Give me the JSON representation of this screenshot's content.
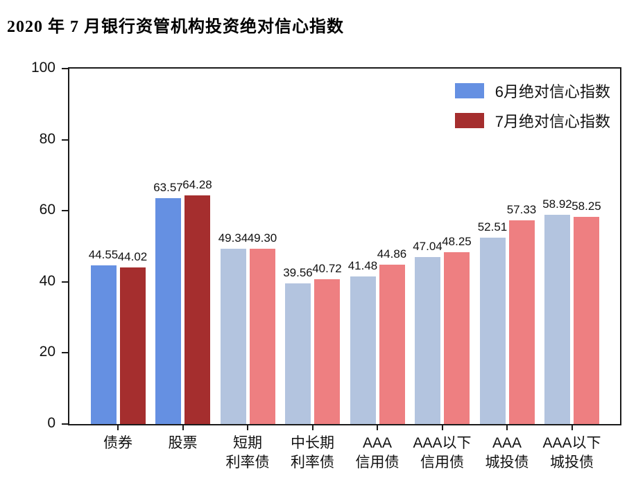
{
  "title": "2020 年 7 月银行资管机构投资绝对信心指数",
  "legend": {
    "items": [
      {
        "label": "6月绝对信心指数",
        "color": "#6590e2"
      },
      {
        "label": "7月绝对信心指数",
        "color": "#a52e2e"
      }
    ]
  },
  "chart_data": {
    "type": "bar",
    "title": "2020 年 7 月银行资管机构投资绝对信心指数",
    "categories": [
      "债券",
      "股票",
      "短期\n利率债",
      "中长期\n利率债",
      "AAA\n信用债",
      "AAA以下\n信用债",
      "AAA\n城投债",
      "AAA以下\n城投债"
    ],
    "series": [
      {
        "name": "6月绝对信心指数",
        "values": [
          44.55,
          63.57,
          49.34,
          39.56,
          41.48,
          47.04,
          52.51,
          58.92
        ],
        "value_labels": [
          "44.55",
          "63.57",
          "49.34",
          "39.56",
          "41.48",
          "47.04",
          "52.51",
          "58.92"
        ],
        "bar_colors": [
          "#6590e2",
          "#6590e2",
          "#b3c4df",
          "#b3c4df",
          "#b3c4df",
          "#b3c4df",
          "#b3c4df",
          "#b3c4df"
        ]
      },
      {
        "name": "7月绝对信心指数",
        "values": [
          44.02,
          64.28,
          49.3,
          40.72,
          44.86,
          48.25,
          57.33,
          58.25
        ],
        "value_labels": [
          "44.02",
          "64.28",
          "49.30",
          "40.72",
          "44.86",
          "48.25",
          "57.33",
          "58.25"
        ],
        "bar_colors": [
          "#a52e2e",
          "#a52e2e",
          "#ee7f81",
          "#ee7f81",
          "#ee7f81",
          "#ee7f81",
          "#ee7f81",
          "#ee7f81"
        ]
      }
    ],
    "xlabel": "",
    "ylabel": "",
    "ylim": [
      0,
      100
    ],
    "yticks": [
      0,
      20,
      40,
      60,
      80,
      100
    ],
    "grid": false,
    "legend_position": "upper right"
  }
}
